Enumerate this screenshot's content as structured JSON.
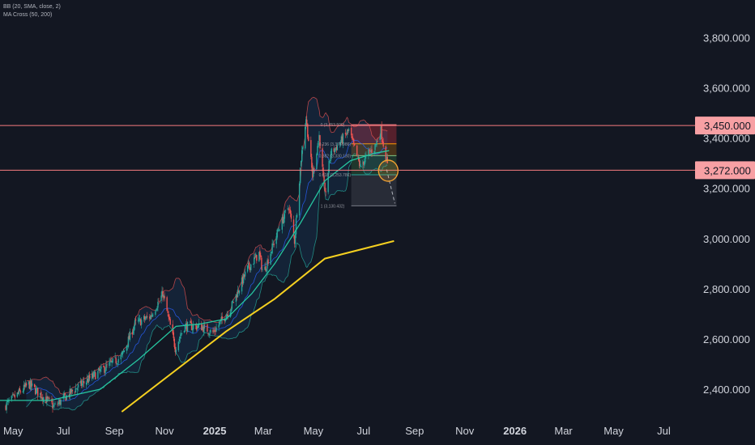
{
  "legend": {
    "bb": "BB (20, SMA, close, 2)",
    "ma_cross": "MA Cross (50, 200)"
  },
  "colors": {
    "background": "#131722",
    "up": "#26a69a",
    "down": "#ef5350",
    "bb_band": "#e05050",
    "bb_basis": "#2962ff",
    "ma50": "#26c6a0",
    "ma200": "#f5d020",
    "level_line": "#f77c80",
    "level_label_bg": "#f7a0a4",
    "fib_circle": "#f0a030",
    "axis_text": "#d1d4dc",
    "annotation_text": "#9598a1"
  },
  "chart_data": {
    "type": "candlestick",
    "title": "",
    "x_ticks": [
      "May",
      "Jul",
      "Sep",
      "Nov",
      "2025",
      "Mar",
      "May",
      "Jul",
      "Sep",
      "Nov",
      "2026",
      "Mar",
      "May",
      "Jul"
    ],
    "y_ticks": [
      "2,400.000",
      "2,600.000",
      "2,800.000",
      "3,000.000",
      "3,200.000",
      "3,400.000",
      "3,600.000",
      "3,800.000"
    ],
    "ylim": [
      2300,
      3950
    ],
    "x_range": [
      "2024-04-15",
      "2026-08-05"
    ],
    "price_path": [
      [
        "2024-04-20",
        2330
      ],
      [
        "2024-05-20",
        2420
      ],
      [
        "2024-06-20",
        2330
      ],
      [
        "2024-07-15",
        2400
      ],
      [
        "2024-08-10",
        2460
      ],
      [
        "2024-09-10",
        2530
      ],
      [
        "2024-09-26",
        2660
      ],
      [
        "2024-10-15",
        2690
      ],
      [
        "2024-10-30",
        2780
      ],
      [
        "2024-11-14",
        2565
      ],
      [
        "2024-11-25",
        2650
      ],
      [
        "2024-12-15",
        2650
      ],
      [
        "2024-12-30",
        2625
      ],
      [
        "2025-01-20",
        2720
      ],
      [
        "2025-02-10",
        2880
      ],
      [
        "2025-02-24",
        2940
      ],
      [
        "2025-03-01",
        2860
      ],
      [
        "2025-03-20",
        3040
      ],
      [
        "2025-04-01",
        3130
      ],
      [
        "2025-04-08",
        2990
      ],
      [
        "2025-04-16",
        3320
      ],
      [
        "2025-04-22",
        3480
      ],
      [
        "2025-04-30",
        3250
      ],
      [
        "2025-05-08",
        3410
      ],
      [
        "2025-05-15",
        3170
      ],
      [
        "2025-05-22",
        3340
      ],
      [
        "2025-06-02",
        3380
      ],
      [
        "2025-06-13",
        3430
      ],
      [
        "2025-06-27",
        3285
      ],
      [
        "2025-07-07",
        3340
      ],
      [
        "2025-07-14",
        3360
      ],
      [
        "2025-07-22",
        3430
      ],
      [
        "2025-07-30",
        3290
      ]
    ],
    "ma200_path": [
      [
        "2024-09-10",
        2310
      ],
      [
        "2025-01-15",
        2630
      ],
      [
        "2025-03-15",
        2760
      ],
      [
        "2025-05-15",
        2920
      ],
      [
        "2025-08-07",
        2990
      ]
    ],
    "ma50_path": [
      [
        "2024-04-15",
        2355
      ],
      [
        "2024-06-15",
        2355
      ],
      [
        "2024-08-15",
        2400
      ],
      [
        "2024-10-01",
        2520
      ],
      [
        "2024-11-15",
        2650
      ],
      [
        "2024-12-15",
        2660
      ],
      [
        "2025-01-15",
        2680
      ],
      [
        "2025-02-15",
        2780
      ],
      [
        "2025-03-15",
        2900
      ],
      [
        "2025-04-15",
        3060
      ],
      [
        "2025-05-15",
        3230
      ],
      [
        "2025-06-15",
        3310
      ],
      [
        "2025-07-15",
        3340
      ],
      [
        "2025-08-01",
        3350
      ]
    ],
    "horizontal_levels": [
      {
        "label": "3,450.000",
        "value": 3450
      },
      {
        "label": "3,272.000",
        "value": 3272
      }
    ],
    "fibonacci": {
      "start": "2025-06-16",
      "end": "2025-08-10",
      "top_label": "0 (3,453.500)",
      "bottom_label": "1 (3,130.432)",
      "levels": [
        {
          "label": "0 (3,453.500)",
          "value": 3453.5
        },
        {
          "label": "0.236 (3,376.986)",
          "value": 3377
        },
        {
          "label": "0.382 (3,330.130)",
          "value": 3330
        },
        {
          "label": "0.618 (3,253.786)",
          "value": 3254
        },
        {
          "label": "1 (3,130.432)",
          "value": 3130.4
        }
      ]
    },
    "projection": [
      [
        "2025-07-29",
        3275
      ],
      [
        "2025-08-08",
        3140
      ]
    ],
    "highlight_circle": {
      "date": "2025-07-31",
      "value": 3270
    }
  }
}
